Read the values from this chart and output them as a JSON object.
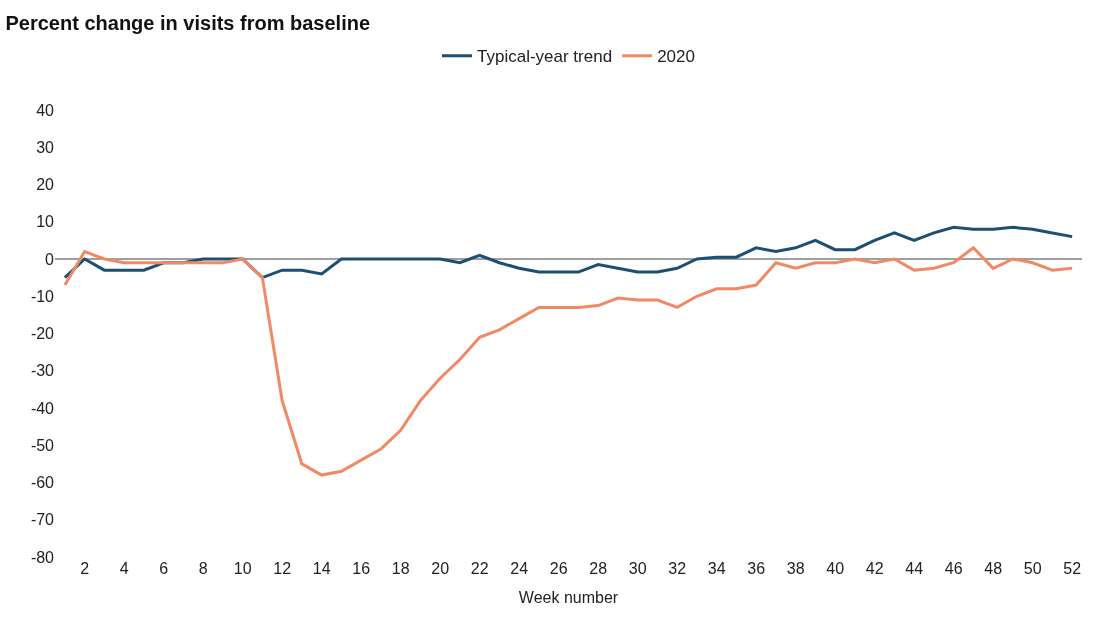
{
  "chart_data": {
    "type": "line",
    "title": "Percent change in visits from baseline",
    "xlabel": "Week number",
    "x": [
      1,
      2,
      3,
      4,
      5,
      6,
      7,
      8,
      9,
      10,
      11,
      12,
      13,
      14,
      15,
      16,
      17,
      18,
      19,
      20,
      21,
      22,
      23,
      24,
      25,
      26,
      27,
      28,
      29,
      30,
      31,
      32,
      33,
      34,
      35,
      36,
      37,
      38,
      39,
      40,
      41,
      42,
      43,
      44,
      45,
      46,
      47,
      48,
      49,
      50,
      51,
      52
    ],
    "series": [
      {
        "name": "Typical-year trend",
        "color": "#1d4f73",
        "values": [
          -5,
          0,
          -3,
          -3,
          -3,
          -1,
          -1,
          0,
          0,
          0,
          -5,
          -3,
          -3,
          -4,
          0,
          0,
          0,
          0,
          0,
          0,
          -1,
          1,
          -1,
          -2.5,
          -3.5,
          -3.5,
          -3.5,
          -1.5,
          -2.5,
          -3.5,
          -3.5,
          -2.5,
          0,
          0.5,
          0.5,
          3,
          2,
          3,
          5,
          2.5,
          2.5,
          5,
          7,
          5,
          7,
          8.5,
          8,
          8,
          8.5,
          8,
          7,
          6
        ]
      },
      {
        "name": "2020",
        "color": "#f08a65",
        "values": [
          -7,
          2,
          0,
          -1,
          -1,
          -1,
          -1,
          -1,
          -1,
          0,
          -5,
          -38,
          -55,
          -58,
          -57,
          -54,
          -51,
          -46,
          -38,
          -32,
          -27,
          -21,
          -19,
          -16,
          -13,
          -13,
          -13,
          -12.5,
          -10.5,
          -11,
          -11,
          -13,
          -10,
          -8,
          -8,
          -7,
          -1,
          -2.5,
          -1,
          -1,
          0,
          -1,
          0,
          -3,
          -2.5,
          -1,
          3,
          -2.5,
          0,
          -1,
          -3,
          -2.5
        ]
      }
    ],
    "xlim": [
      0.5,
      52.5
    ],
    "xticks": [
      2,
      4,
      6,
      8,
      10,
      12,
      14,
      16,
      18,
      20,
      22,
      24,
      26,
      28,
      30,
      32,
      34,
      36,
      38,
      40,
      42,
      44,
      46,
      48,
      50,
      52
    ],
    "ylim": [
      -80,
      40
    ],
    "yticks": [
      -80,
      -70,
      -60,
      -50,
      -40,
      -30,
      -20,
      -10,
      0,
      10,
      20,
      30,
      40
    ],
    "ref_lines": [
      {
        "axis": "y",
        "value": 0,
        "color": "#7f7f7f"
      }
    ],
    "grid": false,
    "legend": "top",
    "marker": "none",
    "line_style": "solid"
  }
}
